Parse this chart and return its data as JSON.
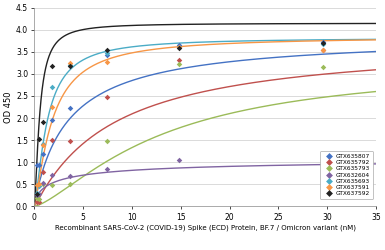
{
  "title": "",
  "xlabel": "Recombinant SARS-CoV-2 (COVID-19) Spike (ECD) Protein, BF.7 / Omicron variant (nM)",
  "ylabel": "OD 450",
  "xlim": [
    0,
    35
  ],
  "ylim": [
    0,
    4.5
  ],
  "xticks": [
    0,
    5,
    10,
    15,
    20,
    25,
    30,
    35
  ],
  "yticks": [
    0,
    0.5,
    1.0,
    1.5,
    2.0,
    2.5,
    3.0,
    3.5,
    4.0,
    4.5
  ],
  "series": [
    {
      "label": "GTX635807",
      "color": "#4472C4",
      "marker_color": "#4472C4",
      "points": [
        [
          0.23,
          0.93
        ],
        [
          0.46,
          0.93
        ],
        [
          0.93,
          1.18
        ],
        [
          1.85,
          1.95
        ],
        [
          3.7,
          2.22
        ],
        [
          7.41,
          3.43
        ],
        [
          14.8,
          3.65
        ],
        [
          29.6,
          3.72
        ]
      ],
      "hill_Vmax": 3.9,
      "hill_K": 3.5,
      "hill_n": 0.95
    },
    {
      "label": "GTX635792",
      "color": "#C0504D",
      "marker_color": "#C0504D",
      "points": [
        [
          0.23,
          0.1
        ],
        [
          0.46,
          0.1
        ],
        [
          0.93,
          0.77
        ],
        [
          1.85,
          1.5
        ],
        [
          3.7,
          1.48
        ],
        [
          7.41,
          2.48
        ],
        [
          14.8,
          3.32
        ],
        [
          29.6,
          3.55
        ]
      ],
      "hill_Vmax": 3.75,
      "hill_K": 8.0,
      "hill_n": 1.05
    },
    {
      "label": "GTX635793",
      "color": "#9BBB59",
      "marker_color": "#9BBB59",
      "points": [
        [
          0.23,
          0.18
        ],
        [
          0.46,
          0.17
        ],
        [
          0.93,
          0.5
        ],
        [
          1.85,
          0.48
        ],
        [
          3.7,
          0.5
        ],
        [
          7.41,
          1.47
        ],
        [
          14.8,
          3.22
        ],
        [
          29.6,
          3.15
        ]
      ],
      "hill_Vmax": 3.25,
      "hill_K": 13.0,
      "hill_n": 1.4
    },
    {
      "label": "GTX632604",
      "color": "#8064A2",
      "marker_color": "#8064A2",
      "points": [
        [
          0.23,
          0.25
        ],
        [
          0.46,
          0.27
        ],
        [
          0.93,
          0.53
        ],
        [
          1.85,
          0.7
        ],
        [
          3.7,
          0.68
        ],
        [
          7.41,
          0.85
        ],
        [
          14.8,
          1.04
        ],
        [
          29.6,
          1.06
        ]
      ],
      "hill_Vmax": 1.12,
      "hill_K": 2.2,
      "hill_n": 0.65
    },
    {
      "label": "GTX635693",
      "color": "#4BACC6",
      "marker_color": "#4BACC6",
      "points": [
        [
          0.23,
          0.3
        ],
        [
          0.46,
          0.45
        ],
        [
          0.93,
          1.42
        ],
        [
          1.85,
          2.7
        ],
        [
          3.7,
          3.2
        ],
        [
          7.41,
          3.48
        ],
        [
          14.8,
          3.6
        ],
        [
          29.6,
          3.68
        ]
      ],
      "hill_Vmax": 3.82,
      "hill_K": 1.3,
      "hill_n": 1.4
    },
    {
      "label": "GTX637591",
      "color": "#F79646",
      "marker_color": "#F79646",
      "points": [
        [
          0.23,
          0.48
        ],
        [
          0.46,
          0.5
        ],
        [
          0.93,
          1.38
        ],
        [
          1.85,
          2.25
        ],
        [
          3.7,
          3.25
        ],
        [
          7.41,
          3.27
        ],
        [
          14.8,
          3.62
        ],
        [
          29.6,
          3.55
        ]
      ],
      "hill_Vmax": 3.85,
      "hill_K": 1.8,
      "hill_n": 1.3
    },
    {
      "label": "GTX637592",
      "color": "#222222",
      "marker_color": "#222222",
      "points": [
        [
          0.23,
          0.28
        ],
        [
          0.46,
          1.52
        ],
        [
          0.93,
          1.92
        ],
        [
          1.85,
          3.18
        ],
        [
          3.7,
          3.18
        ],
        [
          7.41,
          3.55
        ],
        [
          14.8,
          3.58
        ],
        [
          29.6,
          3.7
        ]
      ],
      "hill_Vmax": 4.15,
      "hill_K": 0.55,
      "hill_n": 1.5
    }
  ],
  "background_color": "#FFFFFF",
  "grid_color": "#CCCCCC",
  "legend_pos": "center right",
  "fig_width": 3.85,
  "fig_height": 2.5,
  "dpi": 100
}
